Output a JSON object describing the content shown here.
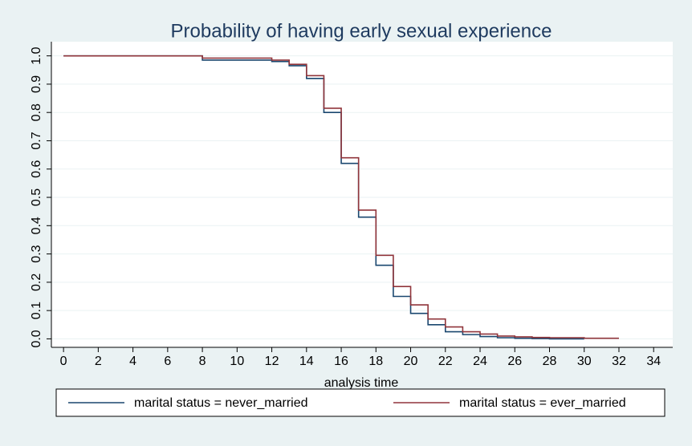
{
  "chart_data": {
    "type": "step",
    "title": "Probability of having early sexual experience",
    "xlabel": "analysis time",
    "xlim": [
      -0.7,
      35.1
    ],
    "xticks": [
      0,
      2,
      4,
      6,
      8,
      10,
      12,
      14,
      16,
      18,
      20,
      22,
      24,
      26,
      28,
      30,
      32,
      34
    ],
    "ylim": [
      -0.03,
      1.05
    ],
    "yticks": [
      {
        "value": 0,
        "label": "0.0"
      },
      0.1,
      0.2,
      0.3,
      0.4,
      0.5,
      0.6,
      0.7,
      0.8,
      0.9,
      {
        "value": 1,
        "label": "1.0"
      }
    ],
    "grid": true,
    "legend": "bottom",
    "series": [
      {
        "name": "marital status = never_married",
        "color": "#1a476f",
        "x": [
          0,
          8,
          12,
          13,
          14,
          15,
          16,
          17,
          18,
          19,
          20,
          21,
          22,
          23,
          24,
          25,
          26,
          27,
          28,
          30
        ],
        "values": [
          1.0,
          0.985,
          0.98,
          0.965,
          0.92,
          0.8,
          0.62,
          0.43,
          0.26,
          0.15,
          0.09,
          0.05,
          0.025,
          0.015,
          0.008,
          0.004,
          0.002,
          0.001,
          0.0,
          0.0
        ]
      },
      {
        "name": "marital status = ever_married",
        "color": "#90353b",
        "x": [
          0,
          8,
          12,
          13,
          14,
          15,
          16,
          17,
          18,
          19,
          20,
          21,
          22,
          23,
          24,
          25,
          26,
          27,
          28,
          30,
          32
        ],
        "values": [
          1.0,
          0.992,
          0.985,
          0.97,
          0.93,
          0.815,
          0.64,
          0.455,
          0.295,
          0.185,
          0.12,
          0.07,
          0.042,
          0.025,
          0.017,
          0.01,
          0.007,
          0.005,
          0.004,
          0.002,
          0.002
        ]
      }
    ]
  }
}
